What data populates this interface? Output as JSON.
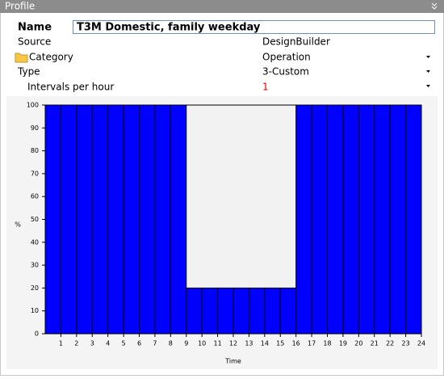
{
  "header": {
    "title": "Profile"
  },
  "form": {
    "rows": [
      {
        "label": "Name",
        "value": "T3M Domestic, family weekday"
      },
      {
        "label": "Source",
        "value": "DesignBuilder"
      },
      {
        "label": "Category",
        "value": "Operation"
      },
      {
        "label": "Type",
        "value": "3-Custom"
      },
      {
        "label": "Intervals per hour",
        "value": "1"
      }
    ]
  },
  "chart_data": {
    "type": "histogram",
    "xlabel": "Time",
    "ylabel": "%",
    "bins": [
      0,
      1,
      2,
      3,
      4,
      5,
      6,
      7,
      8,
      9,
      10,
      11,
      12,
      13,
      14,
      15,
      16,
      17,
      18,
      19,
      20,
      21,
      22,
      23,
      24
    ],
    "values": [
      100,
      100,
      100,
      100,
      100,
      100,
      100,
      100,
      100,
      20,
      20,
      20,
      20,
      20,
      20,
      20,
      100,
      100,
      100,
      100,
      100,
      100,
      100,
      100
    ],
    "color": "#0000ff",
    "xlim": [
      0,
      24
    ],
    "xticks": [
      1,
      2,
      3,
      4,
      5,
      6,
      7,
      8,
      9,
      10,
      11,
      12,
      13,
      14,
      15,
      16,
      17,
      18,
      19,
      20,
      21,
      22,
      23,
      24
    ],
    "ylim": [
      0,
      100
    ],
    "yticks": [
      0,
      10,
      20,
      30,
      40,
      50,
      60,
      70,
      80,
      90,
      100
    ]
  }
}
